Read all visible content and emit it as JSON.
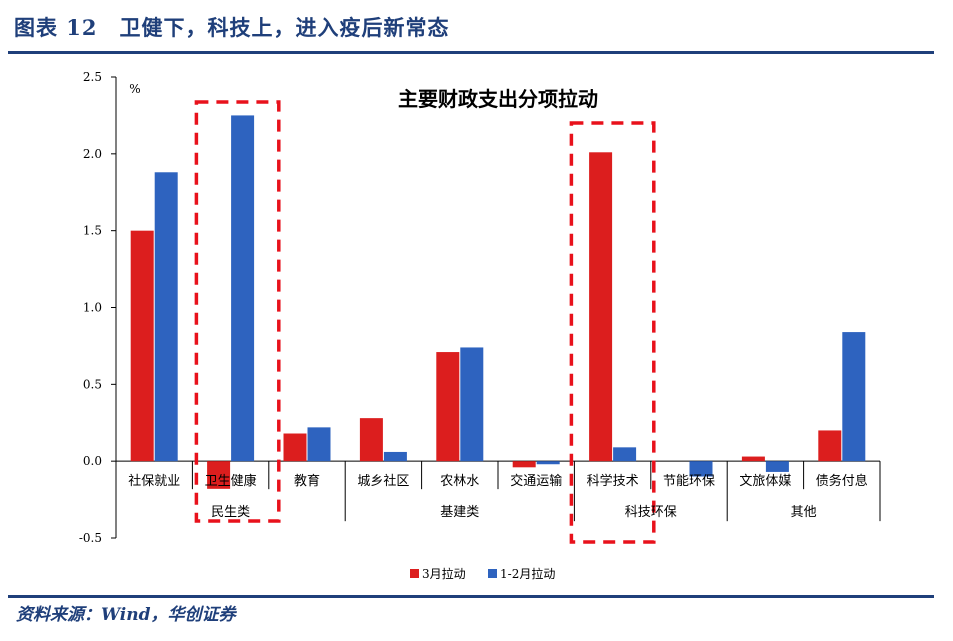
{
  "header": {
    "title": "图表 12　卫健下，科技上，进入疫后新常态"
  },
  "source": {
    "text": "资料来源：Wind，华创证券"
  },
  "colors": {
    "brand_blue": "#1f3f7a",
    "series_red": "#dc1e1e",
    "series_blue": "#2e63bf",
    "highlight_box": "#e8111b"
  },
  "chart_data": {
    "type": "bar",
    "title": "主要财政支出分项拉动",
    "ylabel": "%",
    "ylim": [
      -0.5,
      2.5
    ],
    "yticks": [
      "2.5",
      "2.0",
      "1.5",
      "1.0",
      "0.5",
      "0.0",
      "-0.5"
    ],
    "ytick_values": [
      2.5,
      2.0,
      1.5,
      1.0,
      0.5,
      0.0,
      -0.5
    ],
    "categories": [
      "社保就业",
      "卫生健康",
      "教育",
      "城乡社区",
      "农林水",
      "交通运输",
      "科学技术",
      "节能环保",
      "文旅体媒",
      "债务付息"
    ],
    "groups": [
      {
        "label": "民生类",
        "count": 3
      },
      {
        "label": "基建类",
        "count": 3
      },
      {
        "label": "科技环保",
        "count": 2
      },
      {
        "label": "其他",
        "count": 2
      }
    ],
    "series": [
      {
        "name": "3月拉动",
        "values": [
          1.5,
          -0.18,
          0.18,
          0.28,
          0.71,
          -0.04,
          2.01,
          0.0,
          0.03,
          0.2
        ]
      },
      {
        "name": "1-2月拉动",
        "values": [
          1.88,
          2.25,
          0.22,
          0.06,
          0.74,
          -0.02,
          0.09,
          -0.1,
          -0.07,
          0.84
        ]
      }
    ],
    "highlighted_categories": [
      "卫生健康",
      "科学技术"
    ],
    "legend_position": "bottom",
    "grid": false
  }
}
